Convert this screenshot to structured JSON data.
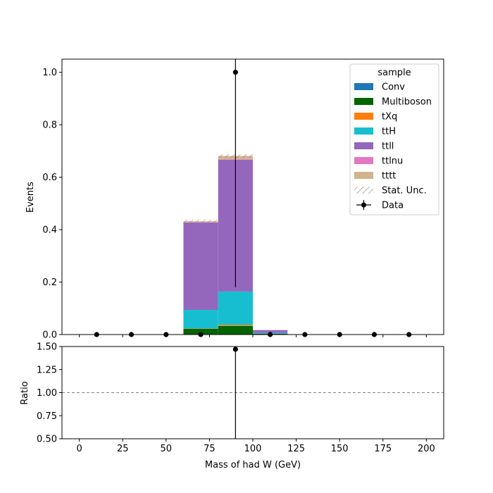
{
  "chart_data": {
    "type": "bar",
    "stacked": true,
    "bins": {
      "edges": [
        0,
        20,
        40,
        60,
        80,
        100,
        120,
        140,
        160,
        180,
        200
      ]
    },
    "xlabel": "Mass of had W (GeV)",
    "xlim": [
      -10,
      210
    ],
    "x_ticks": [
      0,
      25,
      50,
      75,
      100,
      125,
      150,
      175,
      200
    ],
    "main": {
      "ylabel": "Events",
      "ylim": [
        0,
        1.05
      ],
      "y_ticks": [
        "0.0",
        "0.2",
        "0.4",
        "0.6",
        "0.8",
        "1.0"
      ]
    },
    "ratio": {
      "ylabel": "Ratio",
      "ylim": [
        0.5,
        1.5
      ],
      "y_ticks": [
        "0.50",
        "0.75",
        "1.00",
        "1.25",
        "1.50"
      ],
      "reference_line": 1.0,
      "points": [
        {
          "x": 90,
          "y": 1.47,
          "yerr_low": 1.0,
          "yerr_high": 1.0
        }
      ]
    },
    "legend": {
      "title": "sample",
      "position": "top-right"
    },
    "series": [
      {
        "name": "Conv",
        "color": "#1f77b4",
        "values": [
          0,
          0,
          0,
          0,
          0.001,
          0.001,
          0,
          0,
          0,
          0
        ]
      },
      {
        "name": "Multiboson",
        "color": "#006400",
        "values": [
          0,
          0,
          0,
          0.022,
          0.032,
          0.002,
          0,
          0,
          0,
          0
        ]
      },
      {
        "name": "tXq",
        "color": "#ff7f0e",
        "values": [
          0,
          0,
          0,
          0.001,
          0.004,
          0,
          0,
          0,
          0,
          0
        ]
      },
      {
        "name": "ttH",
        "color": "#17becf",
        "values": [
          0,
          0,
          0,
          0.071,
          0.127,
          0.003,
          0,
          0,
          0,
          0
        ]
      },
      {
        "name": "ttll",
        "color": "#9467bd",
        "values": [
          0,
          0,
          0,
          0.333,
          0.502,
          0.011,
          0,
          0,
          0,
          0
        ]
      },
      {
        "name": "ttlnu",
        "color": "#e377c2",
        "values": [
          0,
          0,
          0,
          0.001,
          0.002,
          0,
          0,
          0,
          0,
          0
        ]
      },
      {
        "name": "tttt",
        "color": "#d2b48c",
        "values": [
          0,
          0,
          0,
          0.004,
          0.013,
          0,
          0,
          0,
          0,
          0
        ]
      }
    ],
    "stat_unc": {
      "name": "Stat. Unc.",
      "color": "#888888"
    },
    "data": {
      "name": "Data",
      "color": "#000000",
      "points": [
        {
          "x": 10,
          "y": 0
        },
        {
          "x": 30,
          "y": 0
        },
        {
          "x": 50,
          "y": 0
        },
        {
          "x": 70,
          "y": 0
        },
        {
          "x": 90,
          "y": 1.0,
          "yerr_low": 0.82,
          "yerr_high": 1.0
        },
        {
          "x": 110,
          "y": 0
        },
        {
          "x": 130,
          "y": 0
        },
        {
          "x": 150,
          "y": 0
        },
        {
          "x": 170,
          "y": 0
        },
        {
          "x": 190,
          "y": 0
        }
      ]
    }
  }
}
